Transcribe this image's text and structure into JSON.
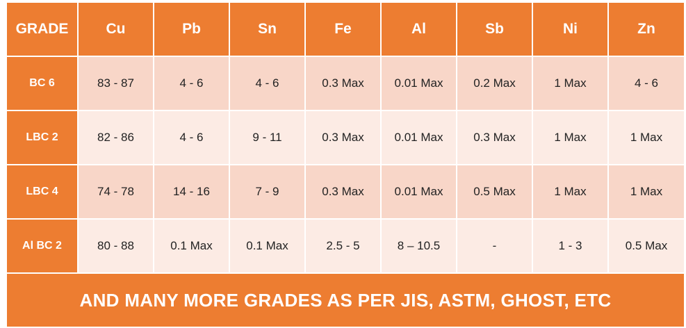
{
  "table": {
    "headers": [
      "GRADE",
      "Cu",
      "Pb",
      "Sn",
      "Fe",
      "Al",
      "Sb",
      "Ni",
      "Zn"
    ],
    "rows": [
      {
        "grade": "BC 6",
        "cells": [
          "83 - 87",
          "4 - 6",
          "4 - 6",
          "0.3 Max",
          "0.01 Max",
          "0.2 Max",
          "1 Max",
          "4 - 6"
        ]
      },
      {
        "grade": "LBC 2",
        "cells": [
          "82 - 86",
          "4 - 6",
          "9 - 11",
          "0.3 Max",
          "0.01 Max",
          "0.3 Max",
          "1 Max",
          "1 Max"
        ]
      },
      {
        "grade": "LBC 4",
        "cells": [
          "74 - 78",
          "14 - 16",
          "7 - 9",
          "0.3 Max",
          "0.01 Max",
          "0.5 Max",
          "1 Max",
          "1 Max"
        ]
      },
      {
        "grade": "Al BC 2",
        "cells": [
          "80 - 88",
          "0.1 Max",
          "0.1 Max",
          "2.5 - 5",
          "8 – 10.5",
          "-",
          "1 - 3",
          "0.5 Max"
        ]
      }
    ],
    "footer": "AND MANY MORE GRADES AS PER JIS, ASTM, GHOST, ETC"
  },
  "colors": {
    "header_bg": "#ed7d31",
    "row_dark": "#f8d6c8",
    "row_light": "#fcebe4",
    "header_text": "#ffffff"
  }
}
